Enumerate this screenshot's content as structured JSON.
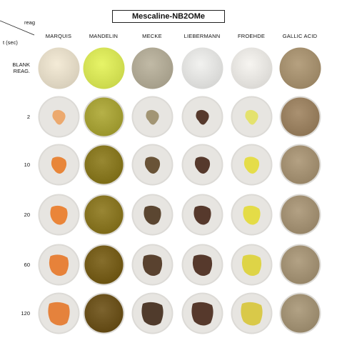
{
  "title": "Mescaline-NB2OMe",
  "corner": {
    "reag_label": "reag",
    "time_label": "t (sec)"
  },
  "reagents": [
    "MARQUIS",
    "MANDELIN",
    "MECKE",
    "LIEBERMANN",
    "FROEHDE",
    "GALLIC ACID"
  ],
  "rows": [
    {
      "label_lines": [
        "BLANK",
        "REAG."
      ]
    },
    {
      "label_lines": [
        "2"
      ]
    },
    {
      "label_lines": [
        "10"
      ]
    },
    {
      "label_lines": [
        "20"
      ]
    },
    {
      "label_lines": [
        "60"
      ]
    },
    {
      "label_lines": [
        "120"
      ]
    }
  ],
  "colors": {
    "MARQUIS": [
      "#e6ddc9",
      "#eda464",
      "#e87e2b",
      "#ea7d2a",
      "#e77a2b",
      "#e57a2e"
    ],
    "MANDELIN": [
      "#d9e65a",
      "#a8a33a",
      "#8a7a24",
      "#8b7826",
      "#78601e",
      "#6e5520"
    ],
    "MECKE": [
      "#b3ac98",
      "#9c8e6a",
      "#5e4728",
      "#4f3822",
      "#4d3420",
      "#432c1c"
    ],
    "LIEBERMANN": [
      "#e4e4e2",
      "#dcdad4",
      "#d8d6d2",
      "#d6d4d0",
      "#d4d2ce",
      "#d4d2ce"
    ],
    "FROEHDE": [
      "#e9e7e3",
      "#e4e264",
      "#e5dc3c",
      "#e4db3a",
      "#ddd23a",
      "#d8c73c"
    ],
    "GALLIC ACID": [
      "#a89372",
      "#9c8363",
      "#a69375",
      "#a59376",
      "#a59477",
      "#a49477"
    ]
  }
}
